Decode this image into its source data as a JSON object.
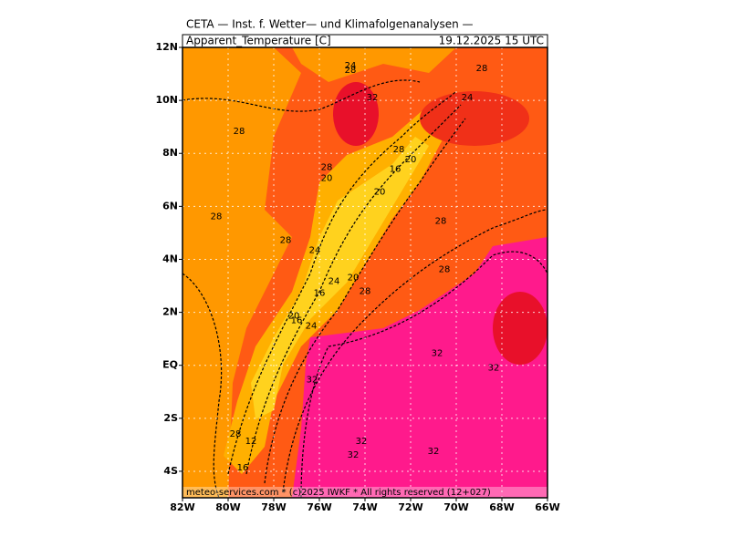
{
  "header": {
    "title": "CETA — Inst. f. Wetter— und Klimafolgenanalysen —",
    "variable": "Apparent_Temperature [C]",
    "valid_time": "19.12.2025 15 UTC"
  },
  "map": {
    "xlim": [
      -82,
      -66
    ],
    "ylim": [
      -5,
      12
    ],
    "lon_ticks": [
      {
        "value": -82,
        "label": "82W"
      },
      {
        "value": -80,
        "label": "80W"
      },
      {
        "value": -78,
        "label": "78W"
      },
      {
        "value": -76,
        "label": "76W"
      },
      {
        "value": -74,
        "label": "74W"
      },
      {
        "value": -72,
        "label": "72W"
      },
      {
        "value": -70,
        "label": "70W"
      },
      {
        "value": -68,
        "label": "68W"
      },
      {
        "value": -66,
        "label": "66W"
      }
    ],
    "lat_ticks": [
      {
        "value": 12,
        "label": "12N"
      },
      {
        "value": 10,
        "label": "10N"
      },
      {
        "value": 8,
        "label": "8N"
      },
      {
        "value": 6,
        "label": "6N"
      },
      {
        "value": 4,
        "label": "4N"
      },
      {
        "value": 2,
        "label": "2N"
      },
      {
        "value": 0,
        "label": "EQ"
      },
      {
        "value": -2,
        "label": "2S"
      },
      {
        "value": -4,
        "label": "4S"
      }
    ],
    "contour_labels": [
      {
        "value": 24,
        "lon": -74.64,
        "lat": 11.31
      },
      {
        "value": 28,
        "lon": -74.64,
        "lat": 11.14
      },
      {
        "value": 28,
        "lon": -68.88,
        "lat": 11.21
      },
      {
        "value": 24,
        "lon": -69.52,
        "lat": 10.1
      },
      {
        "value": 32,
        "lon": -73.68,
        "lat": 10.1
      },
      {
        "value": 28,
        "lon": -79.52,
        "lat": 8.83
      },
      {
        "value": 28,
        "lon": -72.52,
        "lat": 8.14
      },
      {
        "value": 20,
        "lon": -72.0,
        "lat": 7.76
      },
      {
        "value": 16,
        "lon": -72.68,
        "lat": 7.41
      },
      {
        "value": 28,
        "lon": -75.68,
        "lat": 7.48
      },
      {
        "value": 20,
        "lon": -75.68,
        "lat": 7.07
      },
      {
        "value": 20,
        "lon": -73.36,
        "lat": 6.55
      },
      {
        "value": 28,
        "lon": -80.52,
        "lat": 5.62
      },
      {
        "value": 28,
        "lon": -70.68,
        "lat": 5.45
      },
      {
        "value": 28,
        "lon": -77.48,
        "lat": 4.72
      },
      {
        "value": 24,
        "lon": -76.2,
        "lat": 4.34
      },
      {
        "value": 28,
        "lon": -70.52,
        "lat": 3.62
      },
      {
        "value": 24,
        "lon": -75.36,
        "lat": 3.17
      },
      {
        "value": 20,
        "lon": -74.52,
        "lat": 3.31
      },
      {
        "value": 16,
        "lon": -76.0,
        "lat": 2.72
      },
      {
        "value": 28,
        "lon": -74.0,
        "lat": 2.79
      },
      {
        "value": 20,
        "lon": -77.12,
        "lat": 1.86
      },
      {
        "value": 16,
        "lon": -77.0,
        "lat": 1.69
      },
      {
        "value": 24,
        "lon": -76.36,
        "lat": 1.48
      },
      {
        "value": 32,
        "lon": -70.84,
        "lat": 0.45
      },
      {
        "value": 32,
        "lon": -68.36,
        "lat": -0.1
      },
      {
        "value": 32,
        "lon": -76.32,
        "lat": -0.55
      },
      {
        "value": 28,
        "lon": -79.68,
        "lat": -2.59
      },
      {
        "value": 12,
        "lon": -79.0,
        "lat": -2.86
      },
      {
        "value": 32,
        "lon": -74.16,
        "lat": -2.86
      },
      {
        "value": 32,
        "lon": -71.0,
        "lat": -3.24
      },
      {
        "value": 32,
        "lon": -74.52,
        "lat": -3.38
      },
      {
        "value": 16,
        "lon": -79.36,
        "lat": -3.86
      }
    ],
    "footer": "meteo-services.com * (c)2025 IWKF * All rights reserved (12+027)"
  }
}
